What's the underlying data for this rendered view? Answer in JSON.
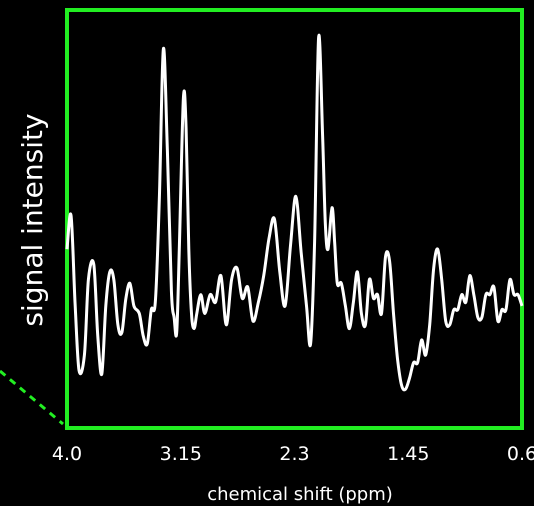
{
  "chart_data": {
    "type": "line",
    "title": "",
    "xlabel": "chemical shift (ppm)",
    "ylabel": "signal intensity",
    "xlim": [
      4.0,
      0.6
    ],
    "x_reversed": true,
    "xticks": [
      4.0,
      3.15,
      2.3,
      1.45,
      0.6
    ],
    "xtick_labels": [
      "4.0",
      "3.15",
      "2.3",
      "1.45",
      "0.6"
    ],
    "ylim": [
      0,
      1
    ],
    "y_ticks_shown": false,
    "grid": false,
    "legend": "none",
    "colors": {
      "background": "#000000",
      "frame": "#22ee22",
      "line": "#ffffff",
      "text": "#ffffff"
    },
    "series": [
      {
        "x": [
          4.0,
          3.97,
          3.94,
          3.91,
          3.87,
          3.84,
          3.8,
          3.77,
          3.74,
          3.71,
          3.68,
          3.65,
          3.62,
          3.59,
          3.56,
          3.53,
          3.5,
          3.46,
          3.43,
          3.4,
          3.37,
          3.34,
          3.31,
          3.28,
          3.25,
          3.22,
          3.2,
          3.18,
          3.16,
          3.13,
          3.11,
          3.09,
          3.07,
          3.05,
          3.03,
          3.0,
          2.97,
          2.93,
          2.89,
          2.85,
          2.81,
          2.77,
          2.73,
          2.69,
          2.65,
          2.61,
          2.57,
          2.53,
          2.49,
          2.45,
          2.41,
          2.37,
          2.33,
          2.29,
          2.25,
          2.21,
          2.18,
          2.15,
          2.12,
          2.09,
          2.07,
          2.05,
          2.02,
          2.0,
          1.98,
          1.95,
          1.92,
          1.89,
          1.86,
          1.83,
          1.8,
          1.77,
          1.74,
          1.71,
          1.68,
          1.65,
          1.62,
          1.59,
          1.56,
          1.53,
          1.5,
          1.47,
          1.44,
          1.41,
          1.38,
          1.35,
          1.32,
          1.29,
          1.26,
          1.23,
          1.2,
          1.17,
          1.14,
          1.11,
          1.08,
          1.05,
          1.02,
          0.99,
          0.96,
          0.93,
          0.9,
          0.87,
          0.84,
          0.81,
          0.78,
          0.75,
          0.72,
          0.69,
          0.66,
          0.63,
          0.6
        ],
        "y": [
          0.42,
          0.51,
          0.28,
          0.1,
          0.14,
          0.34,
          0.38,
          0.19,
          0.09,
          0.27,
          0.36,
          0.34,
          0.22,
          0.2,
          0.29,
          0.33,
          0.27,
          0.25,
          0.19,
          0.17,
          0.26,
          0.28,
          0.55,
          0.95,
          0.68,
          0.31,
          0.24,
          0.2,
          0.43,
          0.82,
          0.74,
          0.42,
          0.25,
          0.21,
          0.25,
          0.3,
          0.25,
          0.3,
          0.28,
          0.35,
          0.22,
          0.34,
          0.37,
          0.29,
          0.32,
          0.23,
          0.28,
          0.35,
          0.45,
          0.5,
          0.36,
          0.27,
          0.43,
          0.56,
          0.41,
          0.27,
          0.17,
          0.44,
          0.98,
          0.72,
          0.49,
          0.42,
          0.53,
          0.44,
          0.33,
          0.33,
          0.27,
          0.21,
          0.28,
          0.36,
          0.25,
          0.22,
          0.34,
          0.29,
          0.3,
          0.25,
          0.4,
          0.39,
          0.25,
          0.13,
          0.06,
          0.05,
          0.08,
          0.12,
          0.12,
          0.18,
          0.14,
          0.22,
          0.37,
          0.42,
          0.34,
          0.23,
          0.22,
          0.26,
          0.26,
          0.3,
          0.28,
          0.35,
          0.3,
          0.24,
          0.24,
          0.3,
          0.3,
          0.32,
          0.23,
          0.26,
          0.26,
          0.34,
          0.3,
          0.3,
          0.27
        ]
      }
    ]
  }
}
